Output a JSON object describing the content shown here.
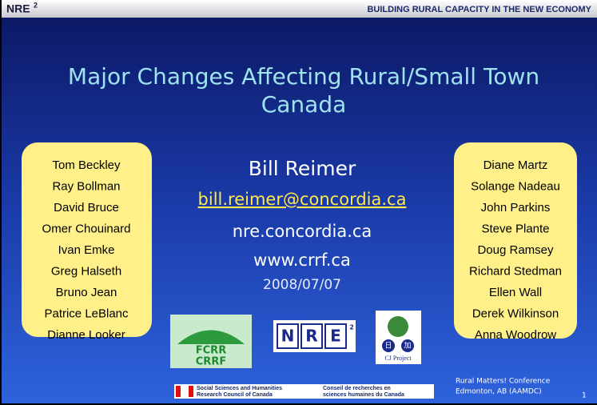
{
  "header": {
    "brand": "NRE",
    "brand_sup": "2",
    "tagline": "BUILDING RURAL CAPACITY IN THE NEW ECONOMY"
  },
  "title_lines": [
    "Major Changes Affecting Rural/Small Town",
    "Canada"
  ],
  "left_names": [
    "Tom Beckley",
    "Ray Bollman",
    "David Bruce",
    "Omer Chouinard",
    "Ivan Emke",
    "Greg Halseth",
    "Bruno Jean",
    "Patrice LeBlanc",
    "Dianne Looker"
  ],
  "right_names": [
    "Diane Martz",
    "Solange Nadeau",
    "John Parkins",
    "Steve Plante",
    "Doug Ramsey",
    "Richard Stedman",
    "Ellen Wall",
    "Derek Wilkinson",
    "Anna Woodrow"
  ],
  "presenter": {
    "name": "Bill Reimer",
    "email": "bill.reimer@concordia.ca",
    "site1": "nre.concordia.ca",
    "site2": "www.crrf.ca",
    "date": "2008/07/07"
  },
  "logos": {
    "fcrr": [
      "FCRR",
      "CRRF"
    ],
    "nre": [
      "N",
      "R",
      "E",
      "2"
    ],
    "cj": {
      "chars": [
        "日",
        "加"
      ],
      "label": "CJ Project"
    }
  },
  "sshrc": [
    "Social Sciences and Humanities",
    "Research Council of Canada",
    "Conseil de recherches en",
    "sciences humaines du Canada"
  ],
  "conference": [
    "Rural Matters! Conference",
    "Edmonton, AB (AAMDC)"
  ],
  "slide_number": "1"
}
